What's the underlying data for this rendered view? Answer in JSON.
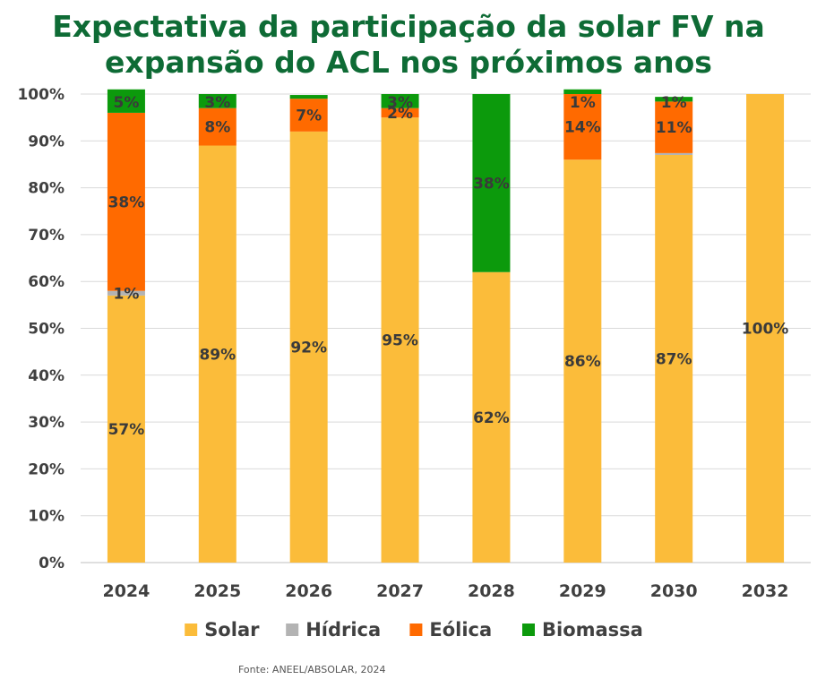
{
  "chart_data": {
    "type": "bar",
    "stacked": true,
    "title": "Expectativa da participação da solar FV na expansão do ACL nos próximos anos",
    "title_lines": [
      "Expectativa da participação da solar FV na",
      "expansão do ACL nos próximos anos"
    ],
    "categories": [
      "2024",
      "2025",
      "2026",
      "2027",
      "2028",
      "2029",
      "2030",
      "2032"
    ],
    "series": [
      {
        "name": "Solar",
        "color": "#fbbc3a",
        "values": [
          57,
          89,
          92,
          95,
          62,
          86,
          87,
          100
        ],
        "labels": [
          "57%",
          "89%",
          "92%",
          "95%",
          "62%",
          "86%",
          "87%",
          "100%"
        ]
      },
      {
        "name": "Hídrica",
        "color": "#b3b3b3",
        "values": [
          1,
          0,
          0,
          0,
          0,
          0,
          0.4,
          0
        ],
        "labels": [
          "1%",
          "",
          "",
          "",
          "",
          "",
          "",
          ""
        ]
      },
      {
        "name": "Eólica",
        "color": "#ff6a00",
        "values": [
          38,
          8,
          7,
          2,
          0,
          14,
          11,
          0
        ],
        "labels": [
          "38%",
          "8%",
          "7%",
          "2%",
          "",
          "14%",
          "11%",
          ""
        ]
      },
      {
        "name": "Biomassa",
        "color": "#0c9a0c",
        "values": [
          5,
          3,
          0.8,
          3,
          38,
          1,
          1,
          0
        ],
        "labels": [
          "5%",
          "3%",
          "",
          "3%",
          "38%",
          "1%",
          "1%",
          ""
        ]
      }
    ],
    "yticks": [
      "0%",
      "10%",
      "20%",
      "30%",
      "40%",
      "50%",
      "60%",
      "70%",
      "80%",
      "90%",
      "100%"
    ],
    "ylim": [
      0,
      100
    ],
    "grid": true,
    "legend": "bottom",
    "xlabel": "",
    "ylabel": ""
  },
  "source": "Fonte: ANEEL/ABSOLAR, 2024"
}
